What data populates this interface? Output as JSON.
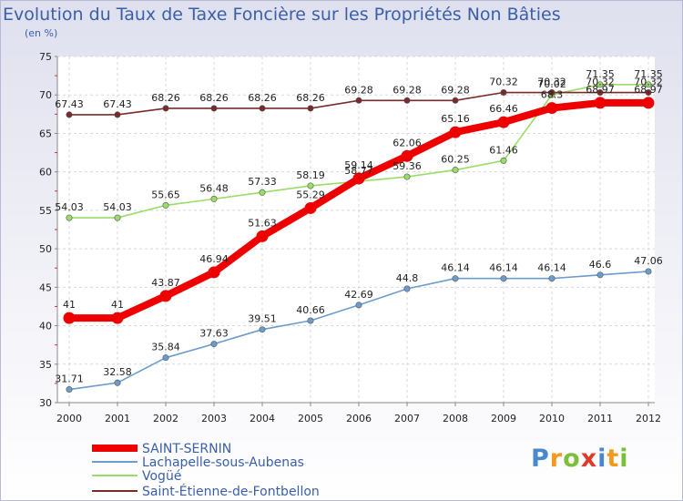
{
  "chart_data": {
    "type": "line",
    "title": "Evolution du Taux de Taxe Foncière sur les Propriétés Non Bâties",
    "subtitle": "(en %)",
    "xlabel": "",
    "ylabel": "",
    "x": [
      "2000",
      "2001",
      "2002",
      "2003",
      "2004",
      "2005",
      "2006",
      "2007",
      "2008",
      "2009",
      "2010",
      "2011",
      "2012"
    ],
    "yticks": [
      30,
      35,
      40,
      45,
      50,
      55,
      60,
      65,
      70,
      75
    ],
    "ylim": [
      30,
      75
    ],
    "grid": true,
    "legend_position": "bottom-left",
    "series": [
      {
        "name": "SAINT-SERNIN",
        "color": "#ee0000",
        "values": [
          41,
          41,
          43.87,
          46.94,
          51.63,
          55.29,
          59.14,
          62.06,
          65.16,
          66.46,
          68.3,
          68.97,
          68.97
        ],
        "labels": [
          "41",
          "41",
          "43.87",
          "46.94",
          "51.63",
          "55.29",
          "59.14",
          "62.06",
          "65.16",
          "66.46",
          "68.3",
          "68.97",
          "68.97"
        ]
      },
      {
        "name": "Lachapelle-sous-Aubenas",
        "color": "#6c9ccc",
        "values": [
          31.71,
          32.58,
          35.84,
          37.63,
          39.51,
          40.66,
          42.69,
          44.8,
          46.14,
          46.14,
          46.14,
          46.6,
          47.06
        ],
        "labels": [
          "31.71",
          "32.58",
          "35.84",
          "37.63",
          "39.51",
          "40.66",
          "42.69",
          "44.8",
          "46.14",
          "46.14",
          "46.14",
          "46.6",
          "47.06"
        ]
      },
      {
        "name": "Vogüé",
        "color": "#99dd66",
        "values": [
          54.03,
          54.03,
          55.65,
          56.48,
          57.33,
          58.19,
          58.77,
          59.36,
          60.25,
          61.46,
          70.02,
          71.35,
          71.35
        ],
        "labels": [
          "54.03",
          "54.03",
          "55.65",
          "56.48",
          "57.33",
          "58.19",
          "58.77",
          "59.36",
          "60.25",
          "61.46",
          "70.02",
          "71.35",
          "71.35"
        ]
      },
      {
        "name": "Saint-Étienne-de-Fontbellon",
        "color": "#7a2a2a",
        "values": [
          67.43,
          67.43,
          68.26,
          68.26,
          68.26,
          68.26,
          69.28,
          69.28,
          69.28,
          70.32,
          70.32,
          70.32,
          70.32
        ],
        "labels": [
          "67.43",
          "67.43",
          "68.26",
          "68.26",
          "68.26",
          "68.26",
          "69.28",
          "69.28",
          "69.28",
          "70.32",
          "70.32",
          "70.32",
          "70.32"
        ]
      }
    ]
  },
  "logo": {
    "text": "Proxiti",
    "letter_colors": [
      "#4a88cc",
      "#f39a1e",
      "#7bbf3a",
      "#e23a2a",
      "#4a88cc",
      "#f39a1e",
      "#7bbf3a"
    ]
  }
}
